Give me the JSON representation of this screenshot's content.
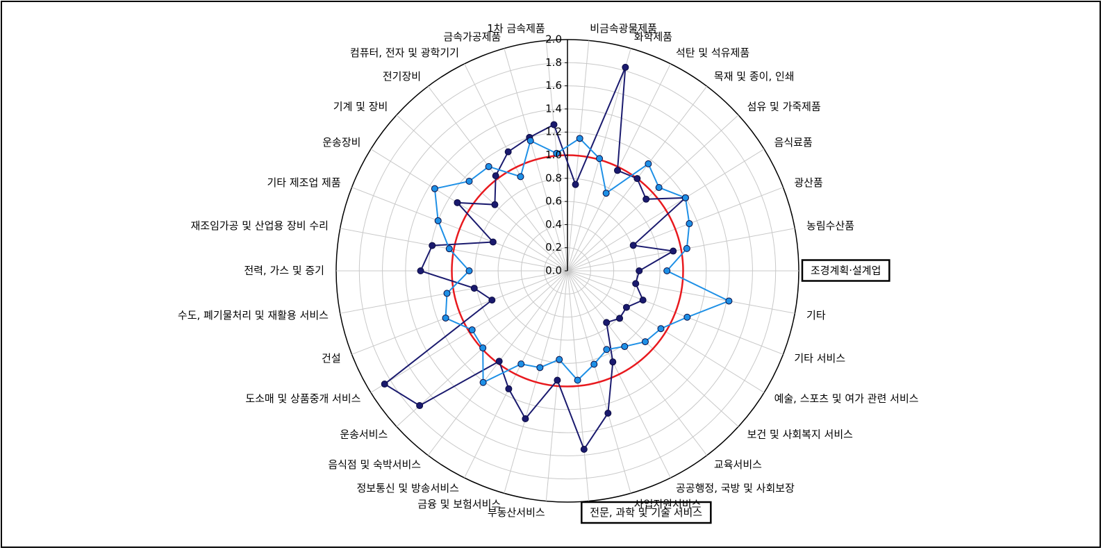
{
  "chart_data": {
    "type": "radar",
    "categories": [
      "비금속광물제품",
      "화학제품",
      "석탄 및 석유제품",
      "목재 및 종이, 인쇄",
      "섬유 및 가죽제품",
      "음식료품",
      "광산품",
      "농림수산품",
      "조경계획·설계업",
      "기타",
      "기타 서비스",
      "예술, 스포츠 및 여가 관련 서비스",
      "보건 및 사회복지 서비스",
      "교육서비스",
      "공공행정, 국방 및 사회보장",
      "사업지원서비스",
      "전문, 과학 및 기술 서비스",
      "부동산서비스",
      "금융 및 보험서비스",
      "정보통신 및 방송서비스",
      "음식점 및 숙박서비스",
      "운송서비스",
      "도소매 및 상품중개 서비스",
      "건설",
      "수도, 폐기물처리 및 재활용 서비스",
      "전력, 가스 및 증기",
      "재조임가공 및 산업용 장비 수리",
      "기타 제조업 제품",
      "운송장비",
      "기계 및 장비",
      "전기장비",
      "컴퓨터, 전자 및 광학기기",
      "금속가공제품",
      "1차 금속제품"
    ],
    "series": [
      {
        "color": "#1a1a6e",
        "values": [
          0.75,
          1.83,
          0.97,
          1.0,
          0.92,
          1.2,
          0.61,
          0.93,
          0.62,
          0.6,
          0.7,
          0.6,
          0.61,
          0.56,
          0.88,
          1.28,
          1.55,
          0.95,
          1.33,
          1.14,
          0.98,
          1.73,
          1.86,
          0.7,
          0.82,
          1.27,
          1.19,
          0.69,
          1.12,
          0.85,
          1.03,
          1.15,
          1.2,
          1.27
        ]
      },
      {
        "color": "#1e90e6",
        "values": [
          1.15,
          1.01,
          0.75,
          1.16,
          1.07,
          1.2,
          1.13,
          1.05,
          0.86,
          1.42,
          1.11,
          0.95,
          0.91,
          0.82,
          0.76,
          0.84,
          0.95,
          0.77,
          0.87,
          0.9,
          1.21,
          0.99,
          0.97,
          1.13,
          1.06,
          0.85,
          1.04,
          1.2,
          1.35,
          1.15,
          1.13,
          0.91,
          1.17,
          1.02
        ]
      }
    ],
    "rlim": [
      0,
      2
    ],
    "rticks": [
      {
        "value": 0,
        "label": "0.0"
      },
      0.2,
      0.4,
      0.6,
      0.8,
      {
        "value": 1,
        "label": "1.0"
      },
      1.2,
      1.4,
      1.6,
      1.8,
      {
        "value": 2,
        "label": "2.0"
      }
    ],
    "reference_line": {
      "value": 1,
      "color": "#e8191e"
    },
    "highlighted": [
      8,
      16
    ],
    "grid": true
  }
}
